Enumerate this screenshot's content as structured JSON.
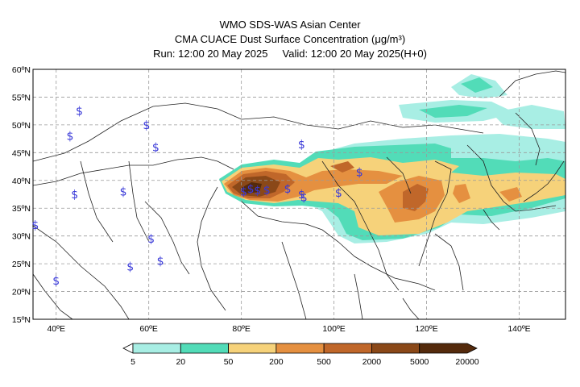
{
  "title": {
    "line1": "WMO SDS-WAS Asian Center",
    "line2": "CMA CUACE Dust Surface Concentration (μg/m³)",
    "run_label": "Run:",
    "run_time": "12:00 20 May 2025",
    "valid_label": "Valid:",
    "valid_time": "12:00 20 May 2025(H+0)"
  },
  "axes": {
    "lat_ticks": [
      "60ºN",
      "55ºN",
      "50ºN",
      "45ºN",
      "40ºN",
      "35ºN",
      "30ºN",
      "25ºN",
      "20ºN",
      "15ºN"
    ],
    "lon_ticks": [
      "40ºE",
      "60ºE",
      "80ºE",
      "100ºE",
      "120ºE",
      "140ºE"
    ],
    "lat_values": [
      60,
      55,
      50,
      45,
      40,
      35,
      30,
      25,
      20,
      15
    ],
    "lon_values": [
      40,
      60,
      80,
      100,
      120,
      140
    ],
    "lon_range": [
      35,
      150
    ],
    "lat_range": [
      15,
      60
    ],
    "grid": true
  },
  "legend": {
    "levels": [
      "5",
      "20",
      "50",
      "200",
      "500",
      "2000",
      "5000",
      "20000"
    ],
    "colors": [
      "#a8eee4",
      "#52dcb8",
      "#f6d27a",
      "#e59040",
      "#c0672a",
      "#8a4818",
      "#542a0c"
    ],
    "extend": "both"
  },
  "dust_symbol": "$",
  "dust_stations": [
    {
      "lon": 45,
      "lat": 52.5
    },
    {
      "lon": 59.5,
      "lat": 50
    },
    {
      "lon": 43,
      "lat": 48
    },
    {
      "lon": 61.5,
      "lat": 46
    },
    {
      "lon": 93,
      "lat": 46.5
    },
    {
      "lon": 105.5,
      "lat": 41.5
    },
    {
      "lon": 44,
      "lat": 37.5
    },
    {
      "lon": 54.5,
      "lat": 38
    },
    {
      "lon": 80.5,
      "lat": 38
    },
    {
      "lon": 82,
      "lat": 38.5
    },
    {
      "lon": 83.5,
      "lat": 38.2
    },
    {
      "lon": 85.5,
      "lat": 38.3
    },
    {
      "lon": 90,
      "lat": 38.5
    },
    {
      "lon": 93,
      "lat": 37.5
    },
    {
      "lon": 93.5,
      "lat": 37
    },
    {
      "lon": 101,
      "lat": 37.8
    },
    {
      "lon": 35.5,
      "lat": 32
    },
    {
      "lon": 60.5,
      "lat": 29.5
    },
    {
      "lon": 62.5,
      "lat": 25.5
    },
    {
      "lon": 56,
      "lat": 24.5
    },
    {
      "lon": 40,
      "lat": 22
    }
  ]
}
